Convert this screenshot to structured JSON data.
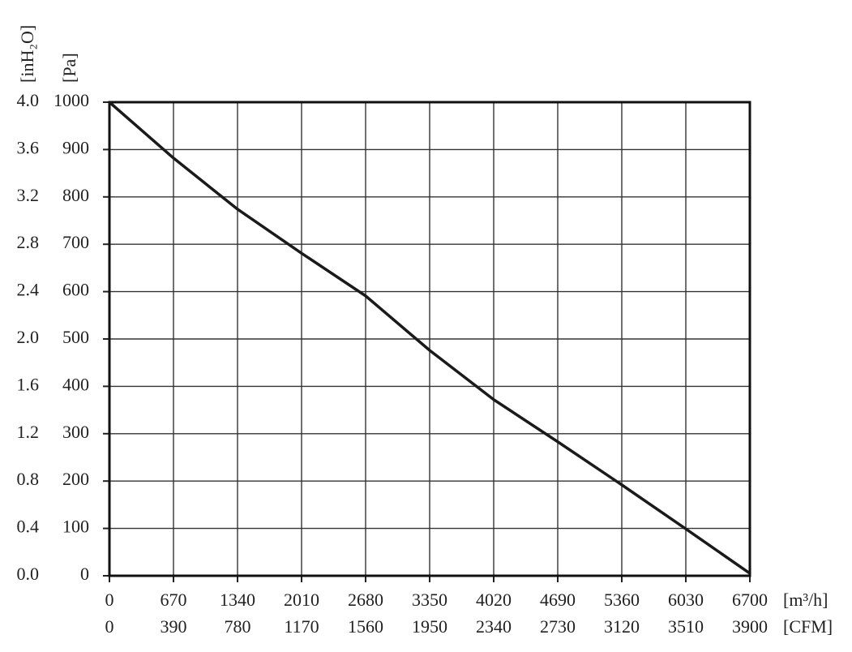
{
  "chart_data": {
    "type": "line",
    "x": [
      0,
      670,
      1340,
      2010,
      2680,
      3350,
      4020,
      4690,
      5360,
      6030,
      6700
    ],
    "values": [
      1000,
      882,
      774,
      681,
      591,
      476,
      372,
      283,
      192,
      99,
      5
    ],
    "color": "#1a1a1a",
    "xlim": [
      0,
      6700
    ],
    "xticks": [
      0,
      670,
      1340,
      2010,
      2680,
      3350,
      4020,
      4690,
      5360,
      6030,
      6700
    ],
    "x_label": "[m³/h]",
    "x2lim": [
      0,
      3900
    ],
    "x2ticks": [
      0,
      390,
      780,
      1170,
      1560,
      1950,
      2340,
      2730,
      3120,
      3510,
      3900
    ],
    "x2_label": "[CFM]",
    "ylim": [
      0,
      1000
    ],
    "yticks": [
      0,
      100,
      200,
      300,
      400,
      500,
      600,
      700,
      800,
      900,
      1000
    ],
    "y_label": "[Pa]",
    "y2lim": [
      0,
      4
    ],
    "y2ticks": [
      {
        "value": 0,
        "label": "0.0"
      },
      0.4,
      0.8,
      1.2,
      1.6,
      {
        "value": 2,
        "label": "2.0"
      },
      2.4,
      2.8,
      3.2,
      3.6,
      {
        "value": 4,
        "label": "4.0"
      }
    ],
    "y2_label": "[inH₂O]",
    "grid": true
  }
}
